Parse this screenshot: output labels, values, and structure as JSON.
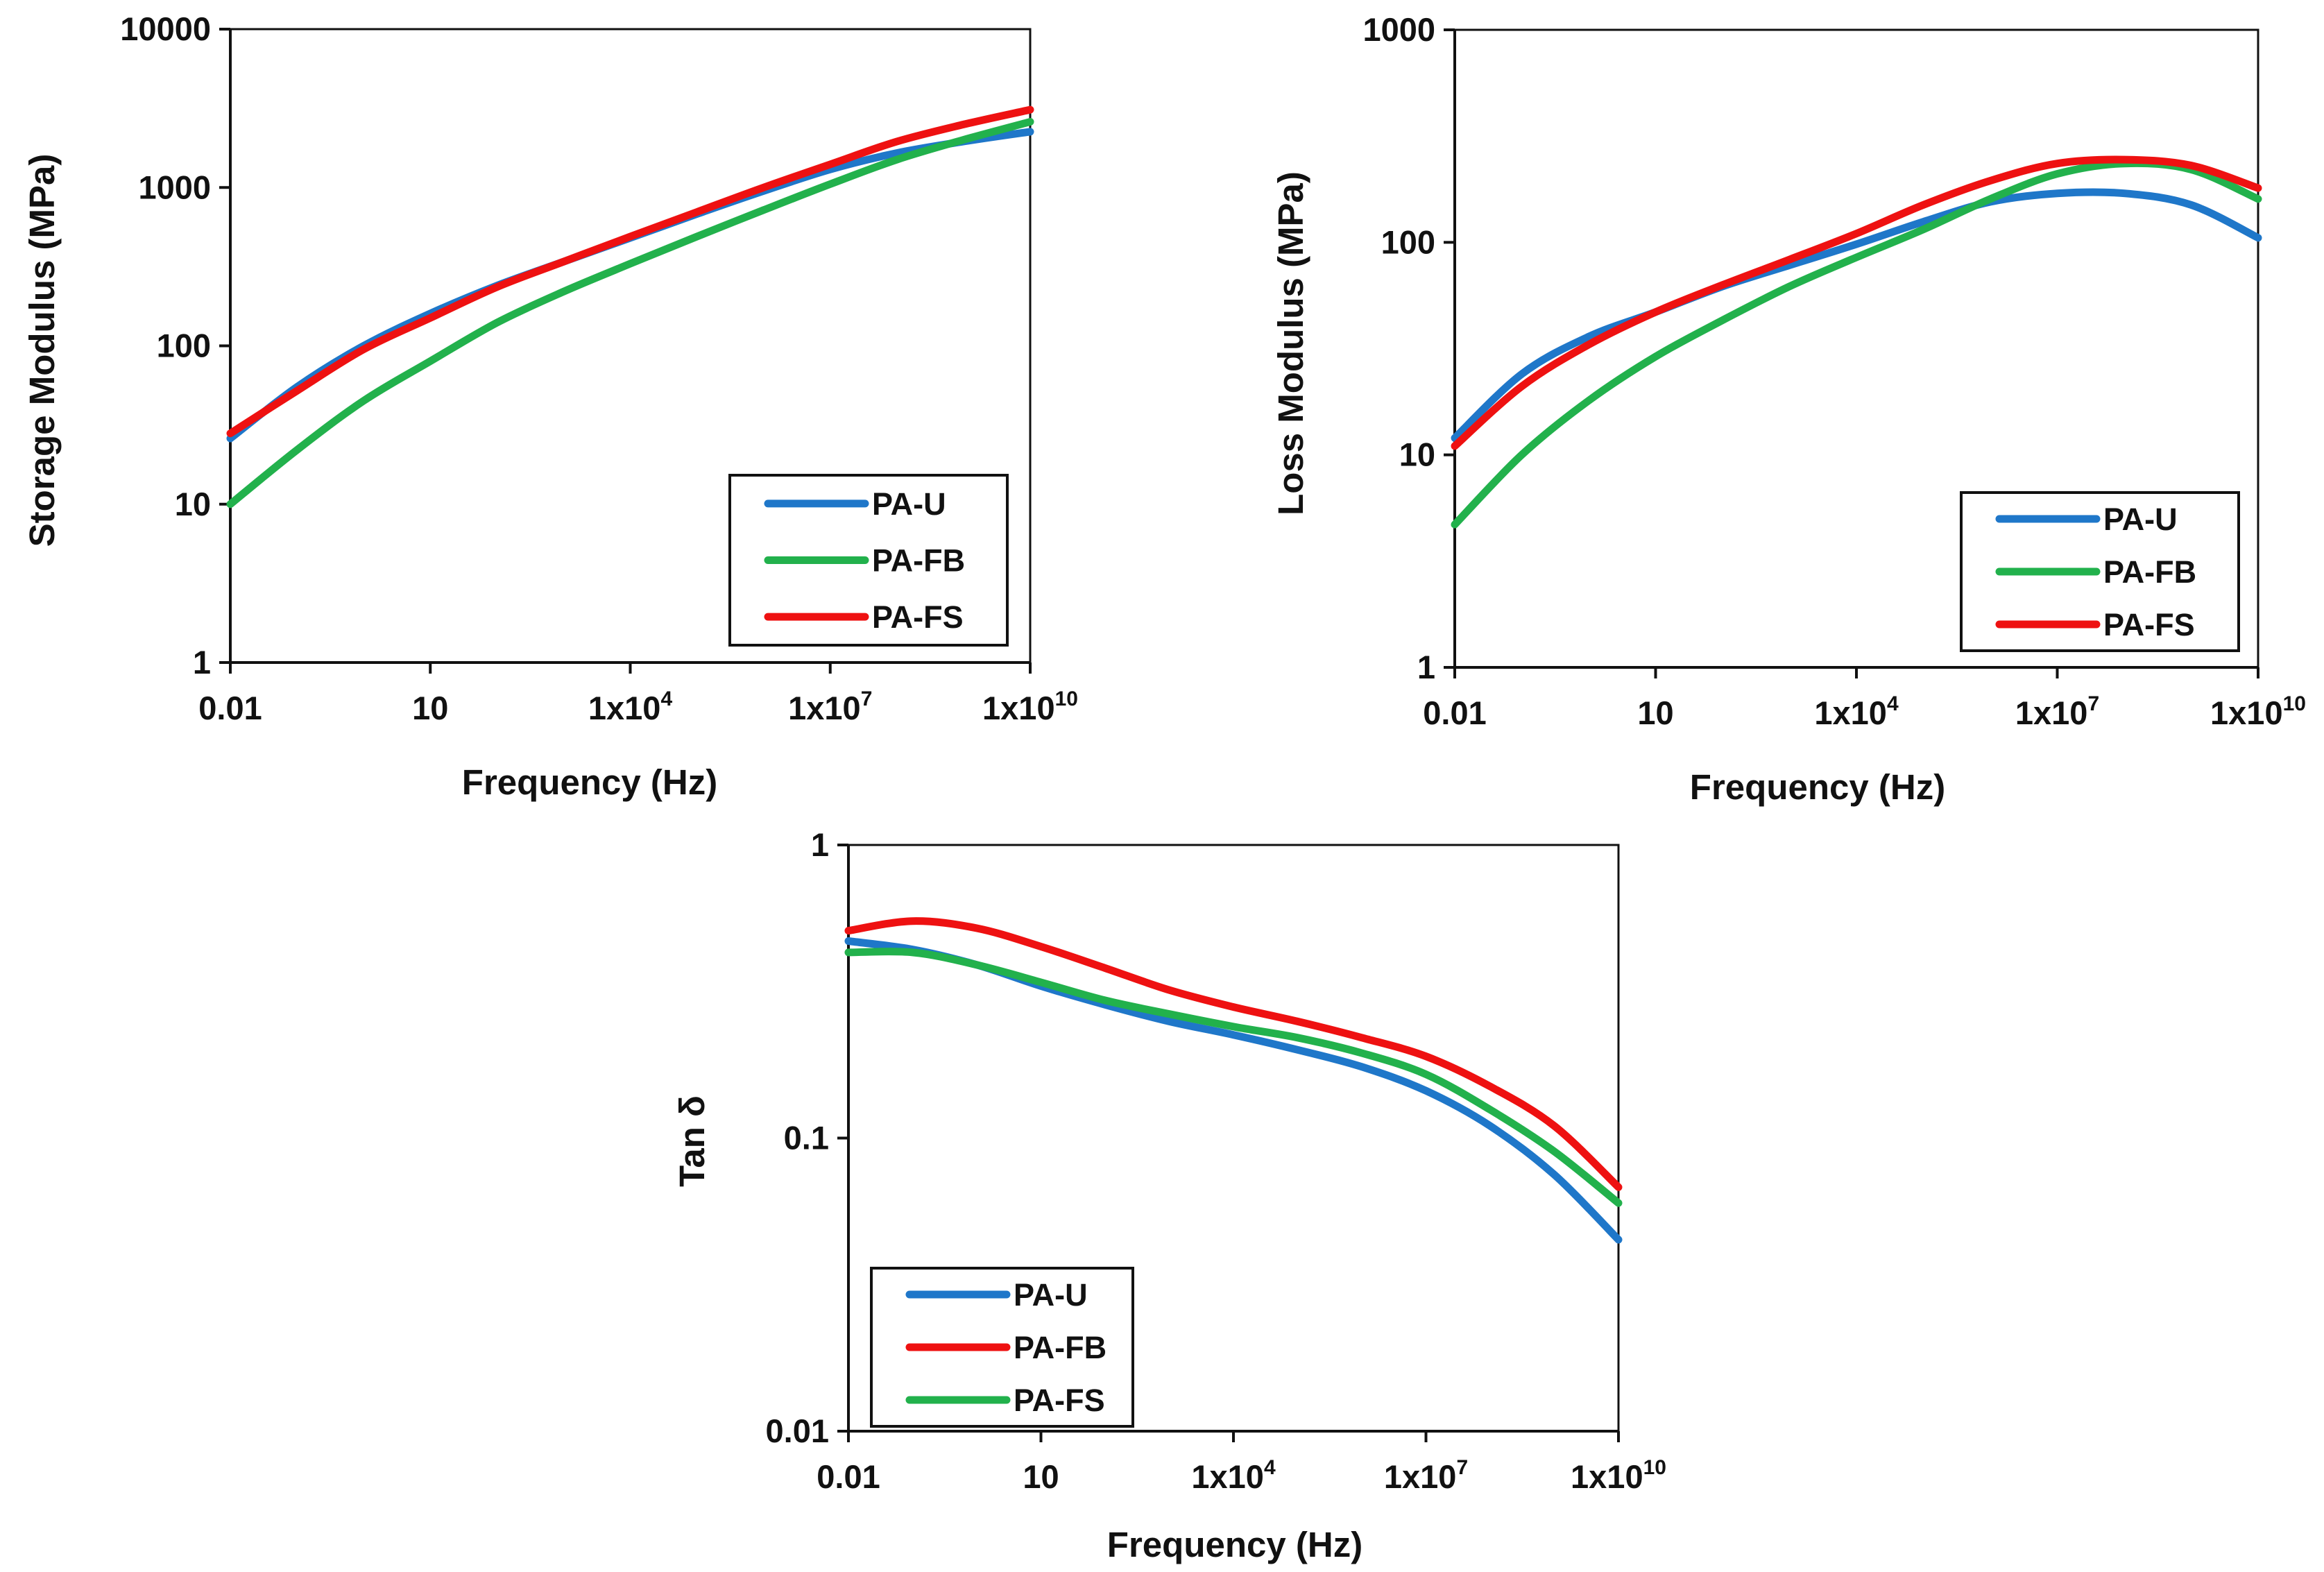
{
  "colors": {
    "blue": "#1f77c9",
    "green": "#22b14c",
    "red": "#ee1111"
  },
  "chart_data": [
    {
      "type": "line",
      "xlabel": "Frequency (Hz)",
      "ylabel": "Storage Modulus (MPa)",
      "xscale": "log",
      "yscale": "log",
      "xlim": [
        0.01,
        10000000000
      ],
      "ylim": [
        1,
        10000
      ],
      "xticks": [
        0.01,
        10,
        10000,
        10000000,
        10000000000
      ],
      "xtick_labels": [
        {
          "base": "0.01",
          "exp": ""
        },
        {
          "base": "10",
          "exp": ""
        },
        {
          "base": "1x10",
          "exp": "4"
        },
        {
          "base": "1x10",
          "exp": "7"
        },
        {
          "base": "1x10",
          "exp": "10"
        }
      ],
      "yticks": [
        1,
        10,
        100,
        1000,
        10000
      ],
      "ytick_labels": [
        "1",
        "10",
        "100",
        "1000",
        "10000"
      ],
      "legend_position": "bottom-right",
      "series": [
        {
          "name": "PA-U",
          "color": "#1f77c9",
          "x": [
            0.01,
            0.1,
            1,
            10,
            100,
            1000,
            10000,
            100000,
            1000000,
            10000000,
            100000000,
            1000000000,
            10000000000
          ],
          "y": [
            26,
            55,
            100,
            160,
            240,
            340,
            480,
            680,
            950,
            1300,
            1650,
            1950,
            2250
          ]
        },
        {
          "name": "PA-FB",
          "color": "#22b14c",
          "x": [
            0.01,
            0.1,
            1,
            10,
            100,
            1000,
            10000,
            100000,
            1000000,
            10000000,
            100000000,
            1000000000,
            10000000000
          ],
          "y": [
            10,
            22,
            45,
            80,
            140,
            220,
            330,
            490,
            720,
            1050,
            1500,
            2000,
            2600
          ]
        },
        {
          "name": "PA-FS",
          "color": "#ee1111",
          "x": [
            0.01,
            0.1,
            1,
            10,
            100,
            1000,
            10000,
            100000,
            1000000,
            10000000,
            100000000,
            1000000000,
            10000000000
          ],
          "y": [
            28,
            52,
            95,
            150,
            235,
            340,
            490,
            700,
            1000,
            1400,
            1950,
            2500,
            3100
          ]
        }
      ]
    },
    {
      "type": "line",
      "xlabel": "Frequency (Hz)",
      "ylabel": "Loss Modulus (MPa)",
      "xscale": "log",
      "yscale": "log",
      "xlim": [
        0.01,
        10000000000
      ],
      "ylim": [
        1,
        1000
      ],
      "xticks": [
        0.01,
        10,
        10000,
        10000000,
        10000000000
      ],
      "xtick_labels": [
        {
          "base": "0.01",
          "exp": ""
        },
        {
          "base": "10",
          "exp": ""
        },
        {
          "base": "1x10",
          "exp": "4"
        },
        {
          "base": "1x10",
          "exp": "7"
        },
        {
          "base": "1x10",
          "exp": "10"
        }
      ],
      "yticks": [
        1,
        10,
        100,
        1000
      ],
      "ytick_labels": [
        "1",
        "10",
        "100",
        "1000"
      ],
      "legend_position": "bottom-right",
      "series": [
        {
          "name": "PA-U",
          "color": "#1f77c9",
          "x": [
            0.01,
            0.1,
            1,
            10,
            100,
            1000,
            10000,
            100000,
            1000000,
            10000000,
            100000000,
            1000000000,
            10000000000
          ],
          "y": [
            12,
            24,
            36,
            47,
            62,
            78,
            98,
            125,
            155,
            170,
            170,
            150,
            105
          ]
        },
        {
          "name": "PA-FB",
          "color": "#22b14c",
          "x": [
            0.01,
            0.1,
            1,
            10,
            100,
            1000,
            10000,
            100000,
            1000000,
            10000000,
            100000000,
            1000000000,
            10000000000
          ],
          "y": [
            4.7,
            10,
            18,
            29,
            43,
            62,
            85,
            115,
            160,
            210,
            235,
            220,
            160
          ]
        },
        {
          "name": "PA-FS",
          "color": "#ee1111",
          "x": [
            0.01,
            0.1,
            1,
            10,
            100,
            1000,
            10000,
            100000,
            1000000,
            10000000,
            100000000,
            1000000000,
            10000000000
          ],
          "y": [
            11,
            21,
            33,
            47,
            63,
            83,
            110,
            150,
            195,
            235,
            245,
            230,
            180
          ]
        }
      ]
    },
    {
      "type": "line",
      "xlabel": "Frequency (Hz)",
      "ylabel": "Tan δ",
      "xscale": "log",
      "yscale": "log",
      "xlim": [
        0.01,
        10000000000
      ],
      "ylim": [
        0.01,
        1
      ],
      "xticks": [
        0.01,
        10,
        10000,
        10000000,
        10000000000
      ],
      "xtick_labels": [
        {
          "base": "0.01",
          "exp": ""
        },
        {
          "base": "10",
          "exp": ""
        },
        {
          "base": "1x10",
          "exp": "4"
        },
        {
          "base": "1x10",
          "exp": "7"
        },
        {
          "base": "1x10",
          "exp": "10"
        }
      ],
      "yticks": [
        0.01,
        0.1,
        1
      ],
      "ytick_labels": [
        "0.01",
        "0.1",
        "1"
      ],
      "legend_position": "bottom-left",
      "series": [
        {
          "name": "PA-U",
          "color": "#1f77c9",
          "x": [
            0.01,
            0.1,
            1,
            10,
            100,
            1000,
            10000,
            100000,
            1000000,
            10000000,
            100000000,
            1000000000,
            10000000000
          ],
          "y": [
            0.47,
            0.44,
            0.39,
            0.33,
            0.285,
            0.25,
            0.225,
            0.2,
            0.175,
            0.145,
            0.11,
            0.075,
            0.045
          ]
        },
        {
          "name": "PA-FB",
          "color": "#ee1111",
          "x": [
            0.01,
            0.1,
            1,
            10,
            100,
            1000,
            10000,
            100000,
            1000000,
            10000000,
            100000000,
            1000000000,
            10000000000
          ],
          "y": [
            0.51,
            0.55,
            0.52,
            0.45,
            0.38,
            0.32,
            0.28,
            0.25,
            0.22,
            0.19,
            0.15,
            0.11,
            0.068
          ]
        },
        {
          "name": "PA-FS",
          "color": "#22b14c",
          "x": [
            0.01,
            0.1,
            1,
            10,
            100,
            1000,
            10000,
            100000,
            1000000,
            10000000,
            100000000,
            1000000000,
            10000000000
          ],
          "y": [
            0.43,
            0.43,
            0.39,
            0.34,
            0.295,
            0.265,
            0.24,
            0.22,
            0.195,
            0.165,
            0.125,
            0.09,
            0.06
          ]
        }
      ]
    }
  ]
}
